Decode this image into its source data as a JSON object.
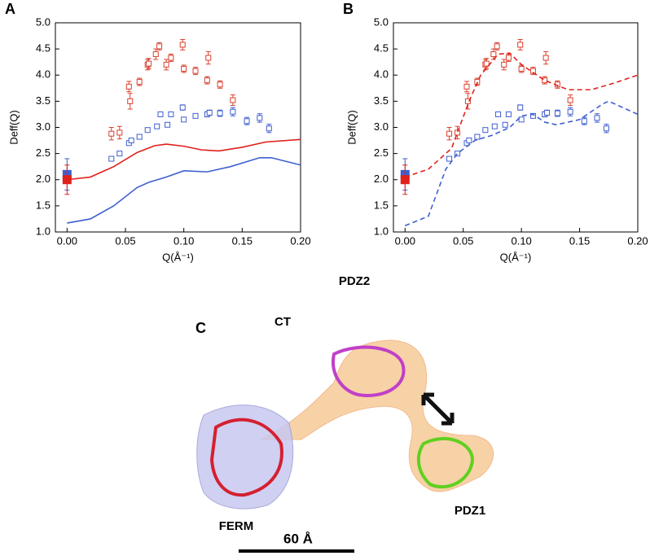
{
  "chart_data": [
    {
      "type": "scatter",
      "title": "A",
      "xlabel": "Q(Å⁻¹)",
      "ylabel": "Deff(Q)",
      "xlim": [
        -0.01,
        0.2
      ],
      "ylim": [
        1.0,
        5.0
      ],
      "xticks": [
        {
          "value": 0,
          "label": "0.00"
        },
        {
          "value": 0.05,
          "label": "0.05"
        },
        {
          "value": 0.1,
          "label": "0.10"
        },
        {
          "value": 0.15,
          "label": "0.15"
        },
        {
          "value": 0.2,
          "label": "0.20"
        }
      ],
      "yticks": [
        {
          "value": 1,
          "label": "1.0"
        },
        {
          "value": 1.5,
          "label": "1.5"
        },
        {
          "value": 2,
          "label": "2.0"
        },
        {
          "value": 2.5,
          "label": "2.5"
        },
        {
          "value": 3,
          "label": "3.0"
        },
        {
          "value": 3.5,
          "label": "3.5"
        },
        {
          "value": 4,
          "label": "4.0"
        },
        {
          "value": 4.5,
          "label": "4.5"
        },
        {
          "value": 5,
          "label": "5.0"
        }
      ],
      "series": [
        {
          "mode": "markers",
          "color": "#d9402f",
          "x": [
            0.038,
            0.045,
            0.053,
            0.054,
            0.062,
            0.069,
            0.07,
            0.076,
            0.079,
            0.085,
            0.089,
            0.099,
            0.1,
            0.11,
            0.12,
            0.121,
            0.131,
            0.142
          ],
          "values": [
            2.88,
            2.9,
            3.78,
            3.5,
            3.87,
            4.2,
            4.22,
            4.4,
            4.55,
            4.2,
            4.33,
            4.58,
            4.12,
            4.08,
            3.9,
            4.33,
            3.82,
            3.52
          ],
          "errors": [
            0.12,
            0.12,
            0.1,
            0.15,
            0.07,
            0.1,
            0.1,
            0.1,
            0.07,
            0.1,
            0.07,
            0.1,
            0.07,
            0.07,
            0.07,
            0.12,
            0.07,
            0.1
          ]
        },
        {
          "mode": "markers",
          "color": "#3f5fcf",
          "x": [
            0.038,
            0.045,
            0.053,
            0.055,
            0.062,
            0.069,
            0.077,
            0.08,
            0.086,
            0.089,
            0.099,
            0.1,
            0.11,
            0.12,
            0.122,
            0.131,
            0.142,
            0.154,
            0.165,
            0.173
          ],
          "values": [
            2.4,
            2.5,
            2.7,
            2.75,
            2.82,
            2.95,
            3.02,
            3.25,
            3.05,
            3.25,
            3.38,
            3.15,
            3.22,
            3.25,
            3.28,
            3.27,
            3.3,
            3.12,
            3.18,
            2.98
          ],
          "errors": [
            0.03,
            0.03,
            0.04,
            0.04,
            0.04,
            0.04,
            0.04,
            0.04,
            0.04,
            0.04,
            0.05,
            0.04,
            0.04,
            0.05,
            0.05,
            0.06,
            0.08,
            0.07,
            0.08,
            0.08
          ]
        },
        {
          "mode": "filled",
          "color": "#3f5fcf",
          "x": [
            0
          ],
          "values": [
            2.1
          ],
          "errors": [
            0.3
          ]
        },
        {
          "mode": "filled",
          "color": "#e0201a",
          "x": [
            0
          ],
          "values": [
            2.0
          ],
          "errors": [
            0.28
          ]
        },
        {
          "mode": "line",
          "color": "#e0201a",
          "x": [
            0,
            0.02,
            0.04,
            0.06,
            0.075,
            0.085,
            0.1,
            0.115,
            0.13,
            0.15,
            0.17,
            0.2
          ],
          "values": [
            2.0,
            2.05,
            2.25,
            2.52,
            2.65,
            2.68,
            2.64,
            2.57,
            2.55,
            2.62,
            2.72,
            2.77
          ]
        },
        {
          "mode": "line",
          "color": "#3f5fcf",
          "x": [
            0,
            0.02,
            0.04,
            0.06,
            0.07,
            0.085,
            0.1,
            0.12,
            0.14,
            0.165,
            0.175,
            0.2
          ],
          "values": [
            1.17,
            1.25,
            1.5,
            1.85,
            1.95,
            2.05,
            2.17,
            2.15,
            2.25,
            2.42,
            2.42,
            2.28
          ]
        }
      ]
    },
    {
      "type": "scatter",
      "title": "B",
      "xlabel": "Q(Å⁻¹)",
      "ylabel": "Deff(Q)",
      "xlim": [
        -0.01,
        0.2
      ],
      "ylim": [
        1.0,
        5.0
      ],
      "xticks": [
        {
          "value": 0,
          "label": "0.00"
        },
        {
          "value": 0.05,
          "label": "0.05"
        },
        {
          "value": 0.1,
          "label": "0.10"
        },
        {
          "value": 0.15,
          "label": "0.15"
        },
        {
          "value": 0.2,
          "label": "0.20"
        }
      ],
      "yticks": [
        {
          "value": 1,
          "label": "1.0"
        },
        {
          "value": 1.5,
          "label": "1.5"
        },
        {
          "value": 2,
          "label": "2.0"
        },
        {
          "value": 2.5,
          "label": "2.5"
        },
        {
          "value": 3,
          "label": "3.0"
        },
        {
          "value": 3.5,
          "label": "3.5"
        },
        {
          "value": 4,
          "label": "4.0"
        },
        {
          "value": 4.5,
          "label": "4.5"
        },
        {
          "value": 5,
          "label": "5.0"
        }
      ],
      "series": [
        {
          "mode": "markers",
          "color": "#d9402f",
          "x": [
            0.038,
            0.045,
            0.053,
            0.054,
            0.062,
            0.069,
            0.07,
            0.076,
            0.079,
            0.085,
            0.089,
            0.099,
            0.1,
            0.11,
            0.12,
            0.121,
            0.131,
            0.142
          ],
          "values": [
            2.88,
            2.9,
            3.78,
            3.5,
            3.87,
            4.2,
            4.22,
            4.4,
            4.55,
            4.2,
            4.33,
            4.58,
            4.12,
            4.08,
            3.9,
            4.33,
            3.82,
            3.52
          ],
          "errors": [
            0.12,
            0.12,
            0.1,
            0.15,
            0.07,
            0.1,
            0.1,
            0.1,
            0.07,
            0.1,
            0.07,
            0.1,
            0.07,
            0.07,
            0.07,
            0.12,
            0.07,
            0.1
          ]
        },
        {
          "mode": "markers",
          "color": "#3f5fcf",
          "x": [
            0.038,
            0.045,
            0.053,
            0.055,
            0.062,
            0.069,
            0.077,
            0.08,
            0.086,
            0.089,
            0.099,
            0.1,
            0.11,
            0.12,
            0.122,
            0.131,
            0.142,
            0.154,
            0.165,
            0.173
          ],
          "values": [
            2.4,
            2.5,
            2.7,
            2.75,
            2.82,
            2.95,
            3.02,
            3.25,
            3.05,
            3.25,
            3.38,
            3.15,
            3.22,
            3.25,
            3.28,
            3.27,
            3.3,
            3.12,
            3.18,
            2.98
          ],
          "errors": [
            0.03,
            0.03,
            0.04,
            0.04,
            0.04,
            0.04,
            0.04,
            0.04,
            0.04,
            0.04,
            0.05,
            0.04,
            0.04,
            0.05,
            0.05,
            0.06,
            0.08,
            0.07,
            0.08,
            0.08
          ]
        },
        {
          "mode": "filled",
          "color": "#3f5fcf",
          "x": [
            0
          ],
          "values": [
            2.1
          ],
          "errors": [
            0.3
          ]
        },
        {
          "mode": "filled",
          "color": "#e0201a",
          "x": [
            0
          ],
          "values": [
            2.0
          ],
          "errors": [
            0.28
          ]
        },
        {
          "mode": "dashed",
          "color": "#e0201a",
          "x": [
            0,
            0.02,
            0.04,
            0.055,
            0.065,
            0.08,
            0.09,
            0.1,
            0.12,
            0.14,
            0.16,
            0.18,
            0.2
          ],
          "values": [
            2.05,
            2.2,
            2.6,
            3.5,
            4.0,
            4.4,
            4.42,
            4.2,
            3.9,
            3.72,
            3.72,
            3.85,
            4.0
          ]
        },
        {
          "mode": "dashed",
          "color": "#3f5fcf",
          "x": [
            0,
            0.02,
            0.035,
            0.045,
            0.06,
            0.075,
            0.09,
            0.1,
            0.11,
            0.12,
            0.13,
            0.15,
            0.17,
            0.175,
            0.2
          ],
          "values": [
            1.12,
            1.3,
            2.2,
            2.5,
            2.75,
            2.85,
            3.0,
            3.22,
            3.25,
            3.1,
            3.05,
            3.15,
            3.45,
            3.5,
            3.25
          ]
        }
      ]
    }
  ],
  "panel_c": {
    "label": "C",
    "domains": [
      "PDZ2",
      "CT",
      "FERM",
      "PDZ1"
    ],
    "scale_bar": "60 Å"
  }
}
